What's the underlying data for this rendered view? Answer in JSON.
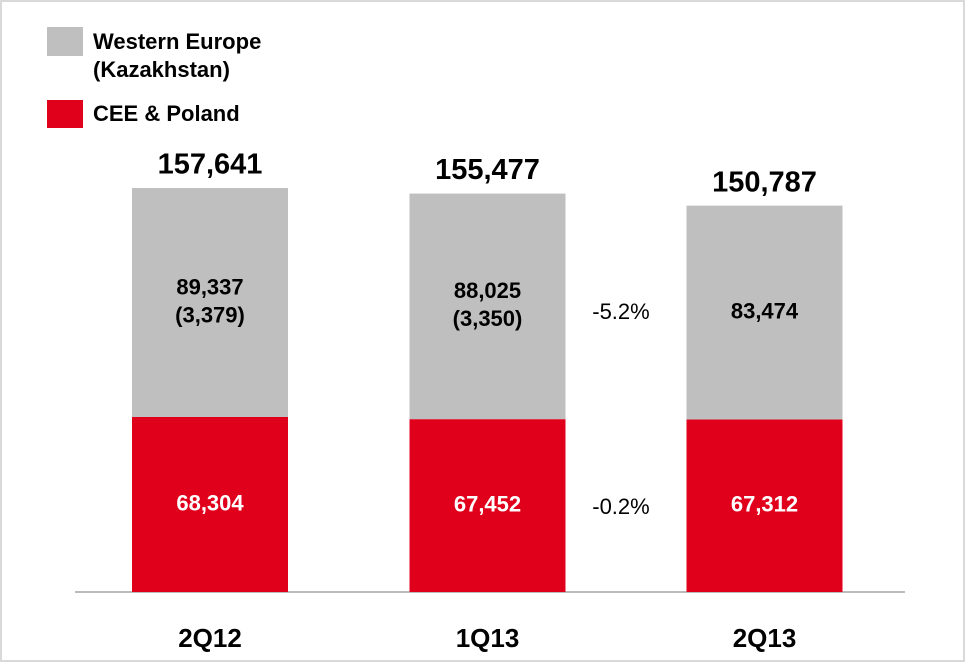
{
  "chart_data": {
    "type": "stacked-bar",
    "categories": [
      "2Q12",
      "1Q13",
      "2Q13"
    ],
    "series": [
      {
        "name": "CEE & Poland",
        "color": "#e0001b",
        "values": [
          68304,
          67452,
          67312
        ],
        "value_labels": [
          "68,304",
          "67,452",
          "67,312"
        ]
      },
      {
        "name": "Western Europe (Kazakhstan)",
        "color": "#bfbfbf",
        "values": [
          89337,
          88025,
          83474
        ],
        "value_labels": [
          "89,337",
          "88,025",
          "83,474"
        ],
        "sub_values": [
          3379,
          3350,
          null
        ],
        "sub_value_labels": [
          "(3,379)",
          "(3,350)",
          null
        ]
      }
    ],
    "totals": [
      157641,
      155477,
      150787
    ],
    "total_labels": [
      "157,641",
      "155,477",
      "150,787"
    ],
    "annotations": [
      "-5.2%",
      "-0.2%"
    ],
    "ylim": [
      0,
      160000
    ]
  }
}
